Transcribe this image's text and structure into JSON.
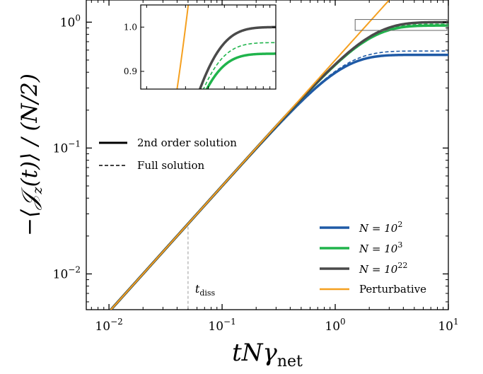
{
  "chart_data": {
    "type": "line",
    "xlabel": "tNγ",
    "xlabel_sub": "net",
    "ylabel": "−⟨𝒥",
    "ylabel_sub": "z",
    "ylabel_tail": "(t)⟩ / (N/2)",
    "xscale": "log",
    "yscale": "log",
    "xlim": [
      0.0063,
      10
    ],
    "ylim": [
      0.0052,
      1.5
    ],
    "x_ticks": [
      {
        "value": 0.01,
        "base": "10",
        "exp": "−2"
      },
      {
        "value": 0.1,
        "base": "10",
        "exp": "−1"
      },
      {
        "value": 1,
        "base": "10",
        "exp": "0"
      },
      {
        "value": 10,
        "base": "10",
        "exp": "1"
      }
    ],
    "y_ticks": [
      {
        "value": 0.01,
        "base": "10",
        "exp": "−2"
      },
      {
        "value": 0.1,
        "base": "10",
        "exp": "−1"
      },
      {
        "value": 1,
        "base": "10",
        "exp": "0"
      }
    ],
    "grid": false,
    "series": [
      {
        "key": "n1e2",
        "name_prefix": "N = 10",
        "name_exp": "2",
        "color": "#1f5aa6",
        "style": "solid",
        "sat": 0.55
      },
      {
        "key": "n1e2_full",
        "color": "#1f5aa6",
        "style": "dashed",
        "sat": 0.59
      },
      {
        "key": "n1e3",
        "name_prefix": "N = 10",
        "name_exp": "3",
        "color": "#20b44c",
        "style": "solid",
        "sat": 0.94
      },
      {
        "key": "n1e3_full",
        "color": "#20b44c",
        "style": "dashed",
        "sat": 0.965
      },
      {
        "key": "n1e22",
        "name_prefix": "N = 10",
        "name_exp": "22",
        "color": "#4a4a4a",
        "style": "solid",
        "sat": 1.0
      },
      {
        "key": "pert",
        "name": "Perturbative",
        "color": "#f5a020",
        "style": "solid",
        "slope": 0.5
      }
    ],
    "style_legend": [
      {
        "label": "2nd order solution",
        "style": "solid"
      },
      {
        "label": "Full solution",
        "style": "dashed"
      }
    ],
    "annotation": {
      "text": "t",
      "sub": "diss",
      "x": 0.05
    },
    "inset": {
      "xlim": [
        0.9,
        10
      ],
      "ylim": [
        0.86,
        1.05
      ],
      "y_ticks": [
        {
          "value": 0.9,
          "label": "0.9"
        },
        {
          "value": 1.0,
          "label": "1.0"
        }
      ],
      "zoom_box": {
        "x": [
          1.5,
          10
        ],
        "y": [
          0.86,
          1.05
        ]
      }
    },
    "legend_position": "lower-right",
    "style_legend_position": "center-left"
  }
}
